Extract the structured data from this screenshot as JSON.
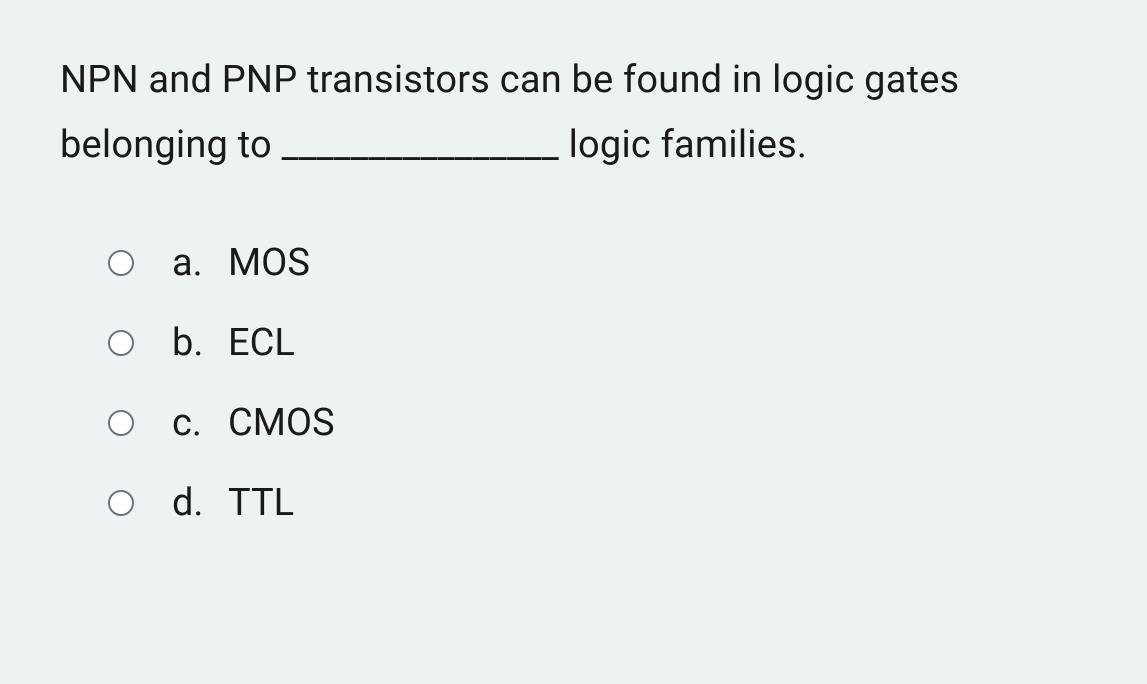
{
  "question": {
    "text": "NPN and PNP transistors can be found in logic gates belonging to ________________ logic families."
  },
  "options": [
    {
      "letter": "a.",
      "text": "MOS"
    },
    {
      "letter": "b.",
      "text": "ECL"
    },
    {
      "letter": "c.",
      "text": "CMOS"
    },
    {
      "letter": "d.",
      "text": "TTL"
    }
  ],
  "styling": {
    "background_color": "#edf2f3",
    "text_color": "#1a1a1a",
    "radio_border_color": "#6b7280",
    "font_size": 38
  }
}
